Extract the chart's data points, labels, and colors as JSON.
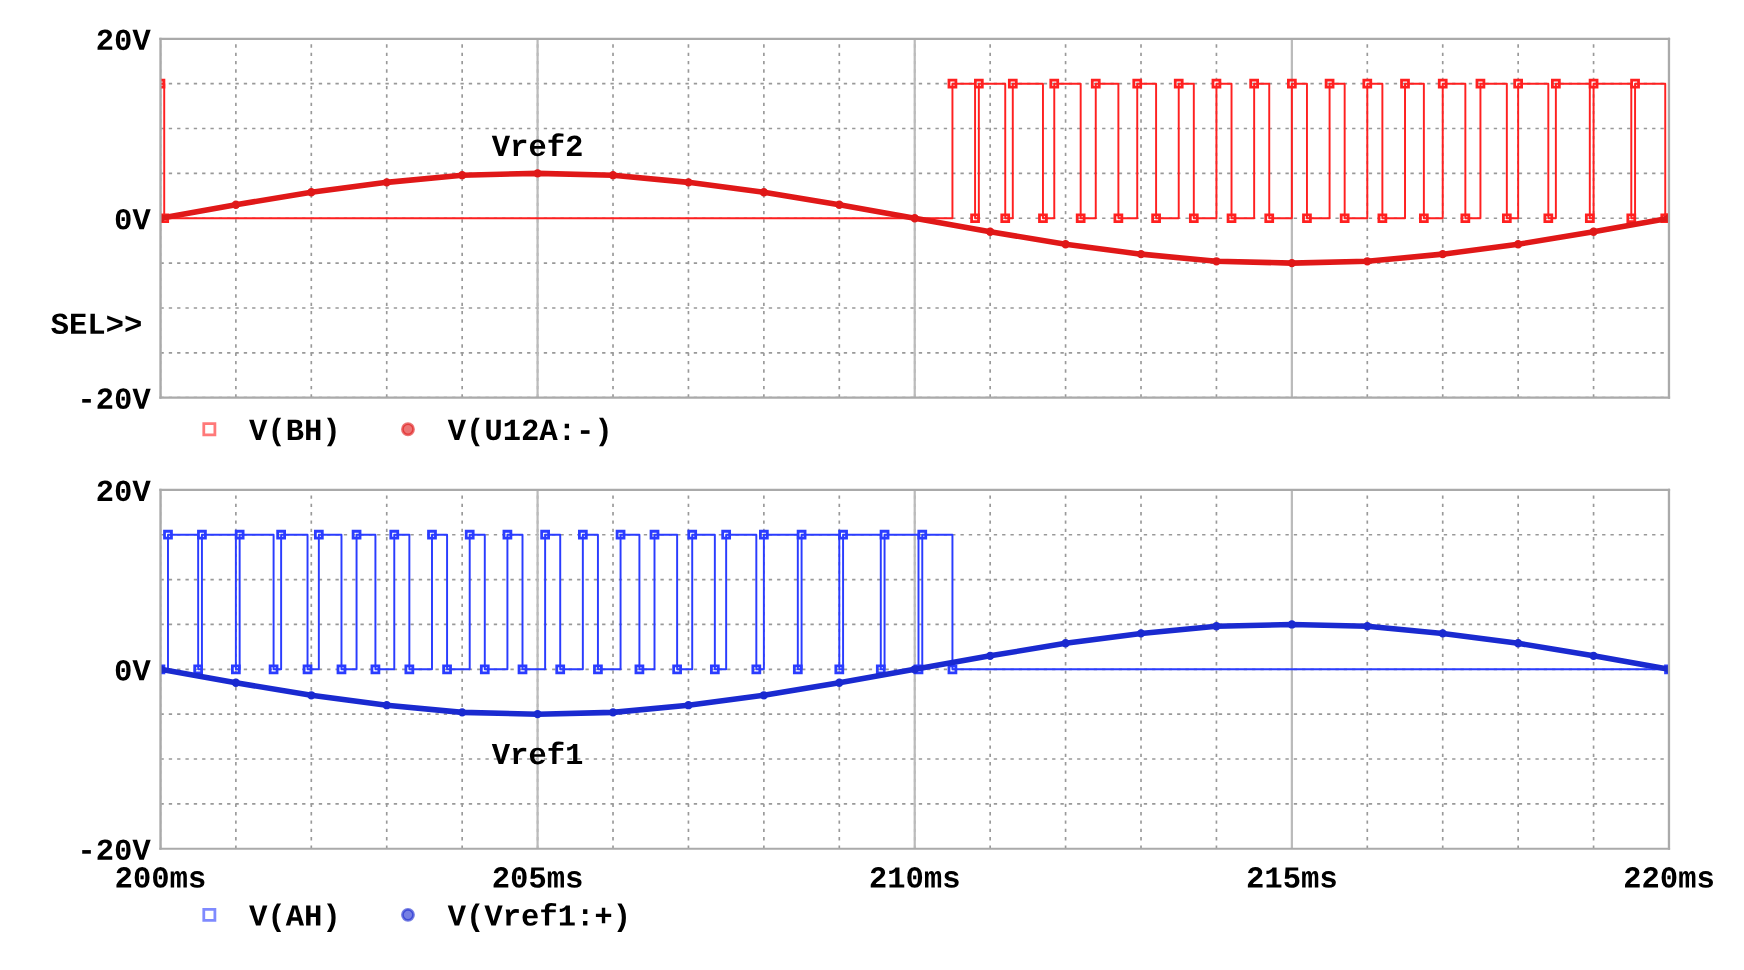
{
  "chart_data": [
    {
      "type": "line",
      "xlim": [
        200,
        220
      ],
      "ylim": [
        -20,
        20
      ],
      "xticks": [
        {
          "value": 200,
          "label": null
        },
        {
          "value": 205,
          "label": null
        },
        {
          "value": 210,
          "label": null
        },
        {
          "value": 215,
          "label": null
        },
        {
          "value": 220,
          "label": null
        }
      ],
      "yticks": [
        {
          "value": -20,
          "label": "-20V"
        },
        {
          "value": 0,
          "label": "0V"
        },
        {
          "value": 20,
          "label": "20V"
        }
      ],
      "tick_labels": "y",
      "grid": true,
      "legend": "bottom",
      "annotations": [
        {
          "text": "Vref2",
          "x": 205,
          "y": 5
        },
        "SEL>>"
      ],
      "series": [
        {
          "name": "V(BH)",
          "type": "step",
          "color": "#ff2020",
          "marker": "square",
          "x": [
            200,
            200.05,
            210.5,
            210.8,
            210.85,
            211.2,
            211.3,
            211.7,
            211.85,
            212.2,
            212.4,
            212.7,
            212.95,
            213.2,
            213.5,
            213.7,
            214.0,
            214.2,
            214.5,
            214.7,
            215.0,
            215.2,
            215.5,
            215.7,
            216.0,
            216.2,
            216.5,
            216.75,
            217.0,
            217.3,
            217.5,
            217.85,
            218.0,
            218.4,
            218.5,
            218.95,
            219.0,
            219.5,
            219.55,
            219.95,
            220
          ],
          "values": [
            15,
            0,
            15,
            0,
            15,
            0,
            15,
            0,
            15,
            0,
            15,
            0,
            15,
            0,
            15,
            0,
            15,
            0,
            15,
            0,
            15,
            0,
            15,
            0,
            15,
            0,
            15,
            0,
            15,
            0,
            15,
            0,
            15,
            0,
            15,
            0,
            15,
            0,
            15,
            0,
            0
          ]
        },
        {
          "name": "V(U12A:-)",
          "color": "#e01818",
          "marker": "circle",
          "x": [
            200,
            201,
            202,
            203,
            204,
            205,
            206,
            207,
            208,
            209,
            210,
            211,
            212,
            213,
            214,
            215,
            216,
            217,
            218,
            219,
            220
          ],
          "values": [
            0,
            1.5,
            2.9,
            4.0,
            4.8,
            5.0,
            4.8,
            4.0,
            2.9,
            1.5,
            0,
            -1.5,
            -2.9,
            -4.0,
            -4.8,
            -5.0,
            -4.8,
            -4.0,
            -2.9,
            -1.5,
            0
          ]
        }
      ]
    },
    {
      "type": "line",
      "xlim": [
        200,
        220
      ],
      "ylim": [
        -20,
        20
      ],
      "xticks": [
        {
          "value": 200,
          "label": "200ms"
        },
        {
          "value": 205,
          "label": "205ms"
        },
        {
          "value": 210,
          "label": "210ms"
        },
        {
          "value": 215,
          "label": "215ms"
        },
        {
          "value": 220,
          "label": "220ms"
        }
      ],
      "yticks": [
        {
          "value": -20,
          "label": "-20V"
        },
        {
          "value": 0,
          "label": "0V"
        },
        {
          "value": 20,
          "label": "20V"
        }
      ],
      "grid": true,
      "legend": "bottom",
      "annotations": [
        {
          "text": "Vref1",
          "x": 205,
          "y": -5
        }
      ],
      "series": [
        {
          "name": "V(AH)",
          "type": "step",
          "color": "#2a3cff",
          "marker": "square",
          "x": [
            200,
            200.1,
            200.5,
            200.55,
            201.0,
            201.05,
            201.5,
            201.6,
            201.95,
            202.1,
            202.4,
            202.6,
            202.85,
            203.1,
            203.3,
            203.6,
            203.8,
            204.1,
            204.3,
            204.6,
            204.8,
            205.1,
            205.3,
            205.6,
            205.8,
            206.1,
            206.35,
            206.55,
            206.85,
            207.05,
            207.35,
            207.5,
            207.9,
            208.0,
            208.45,
            208.5,
            209.0,
            209.05,
            209.55,
            209.6,
            210.05,
            210.1,
            210.5,
            220
          ],
          "values": [
            0,
            15,
            0,
            15,
            0,
            15,
            0,
            15,
            0,
            15,
            0,
            15,
            0,
            15,
            0,
            15,
            0,
            15,
            0,
            15,
            0,
            15,
            0,
            15,
            0,
            15,
            0,
            15,
            0,
            15,
            0,
            15,
            0,
            15,
            0,
            15,
            0,
            15,
            0,
            15,
            0,
            15,
            0,
            0
          ]
        },
        {
          "name": "V(Vref1:+)",
          "color": "#1a2ad0",
          "marker": "circle",
          "x": [
            200,
            201,
            202,
            203,
            204,
            205,
            206,
            207,
            208,
            209,
            210,
            211,
            212,
            213,
            214,
            215,
            216,
            217,
            218,
            219,
            220
          ],
          "values": [
            0,
            -1.5,
            -2.9,
            -4.0,
            -4.8,
            -5.0,
            -4.8,
            -4.0,
            -2.9,
            -1.5,
            0,
            1.5,
            2.9,
            4.0,
            4.8,
            5.0,
            4.8,
            4.0,
            2.9,
            1.5,
            0
          ]
        }
      ]
    }
  ]
}
